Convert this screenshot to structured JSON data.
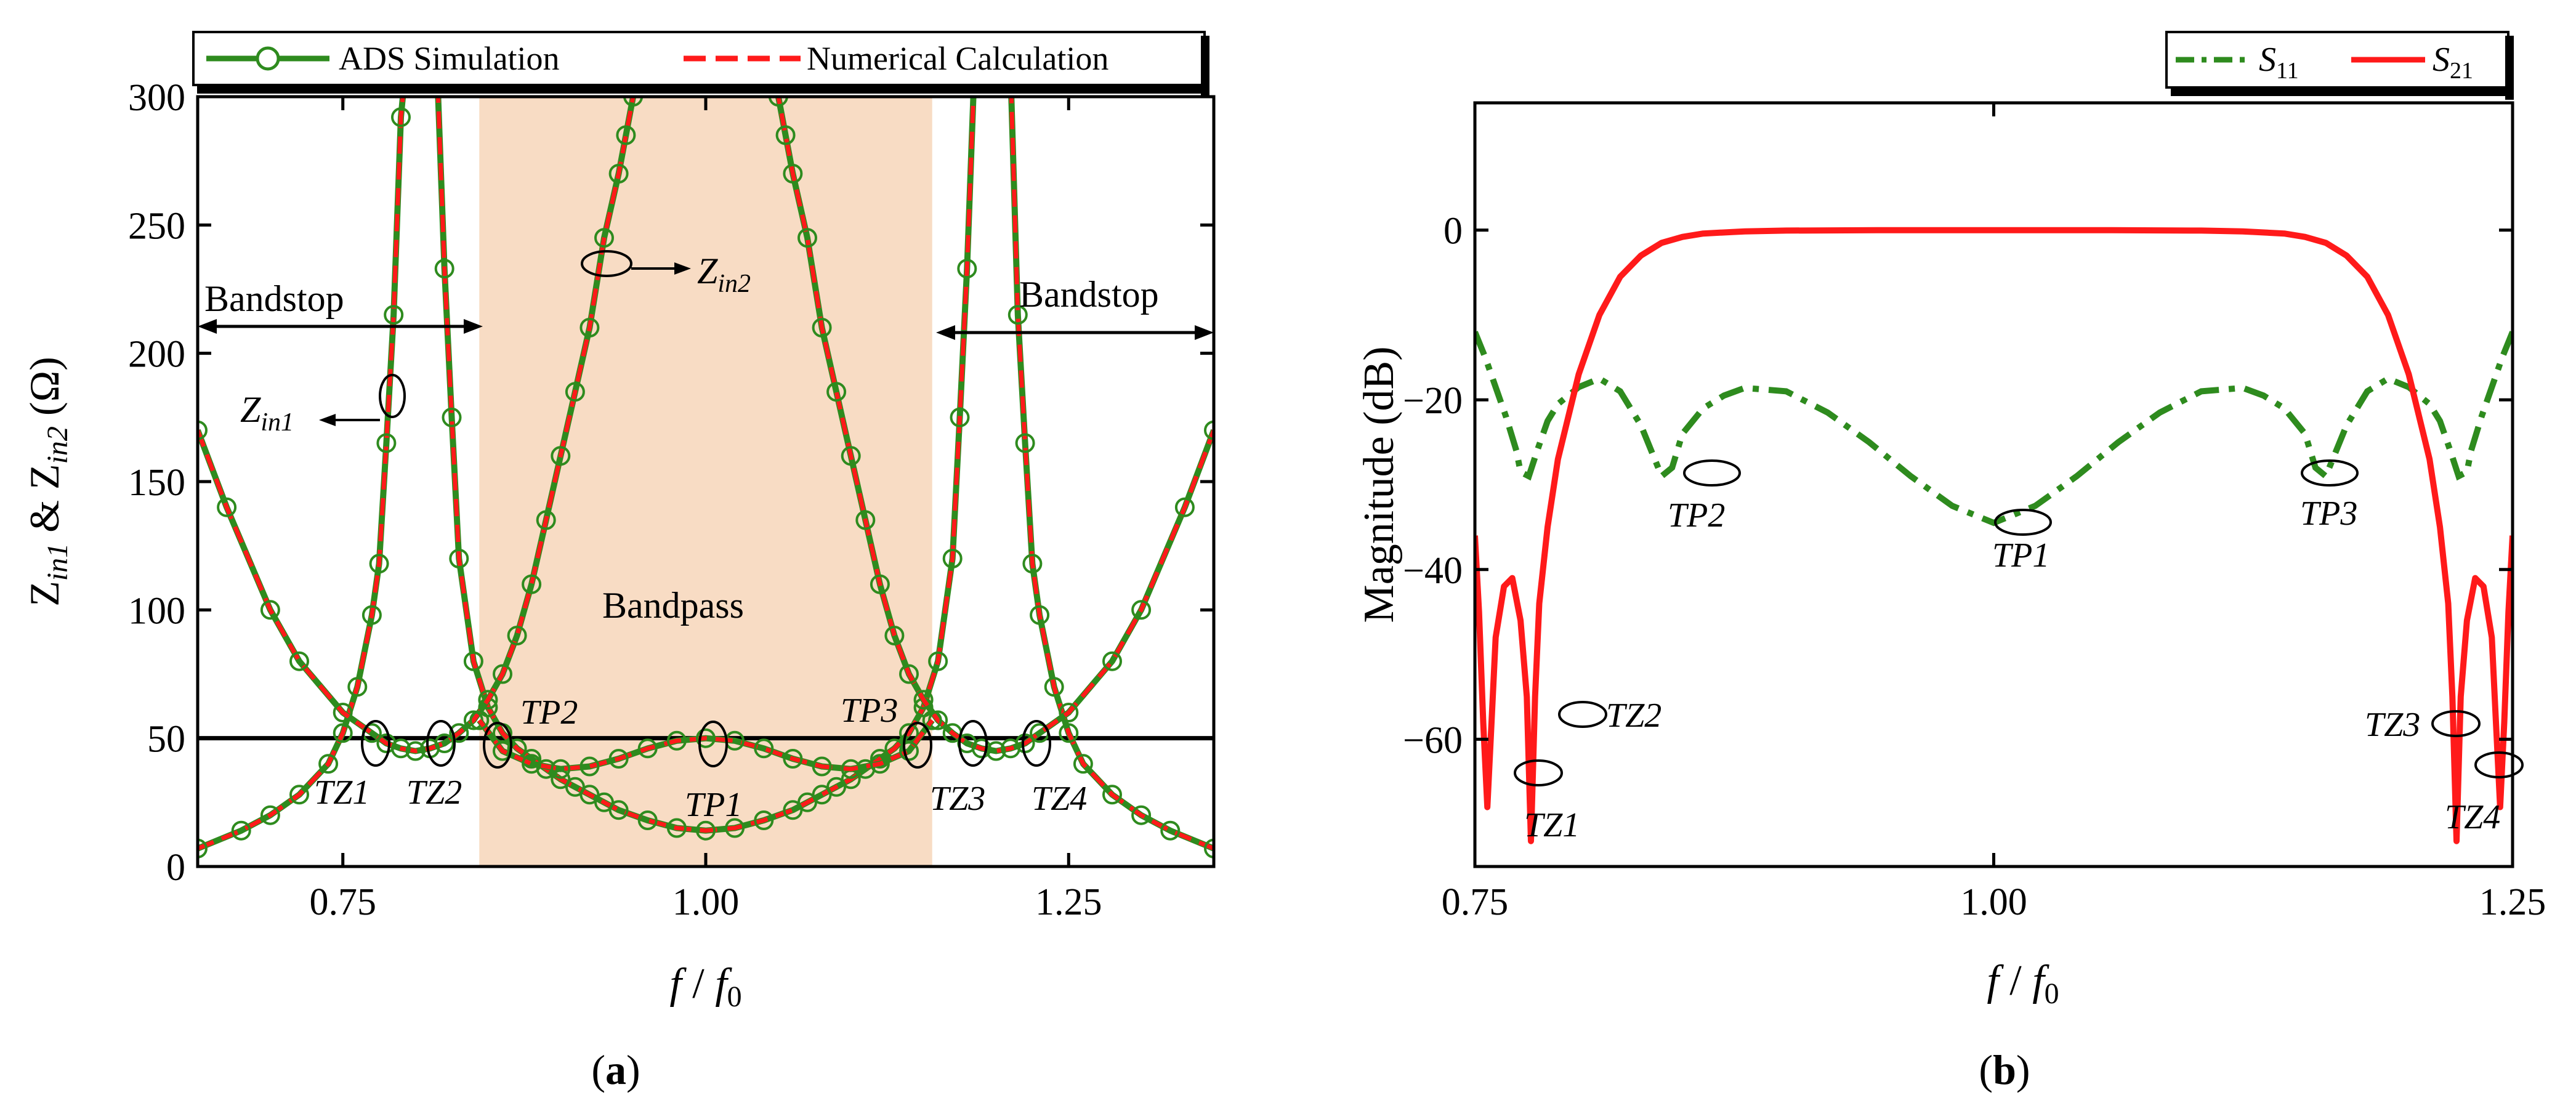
{
  "colors": {
    "green": "#2e8b1e",
    "red": "#ff1a1a",
    "band": "#f8dcc4",
    "black": "#000000"
  },
  "chart_data": [
    {
      "type": "line",
      "panel_label": "(a)",
      "xlabel": "f / f0",
      "ylabel": "Zin1 & Zin2 (Ω)",
      "xlim": [
        0.65,
        1.35
      ],
      "ylim": [
        0,
        300
      ],
      "x_ticks": [
        "0.75",
        "1.00",
        "1.25"
      ],
      "y_ticks": [
        "0",
        "50",
        "100",
        "150",
        "200",
        "250",
        "300"
      ],
      "legend": {
        "placement": "top",
        "entries": [
          "ADS Simulation",
          "Numerical Calculation"
        ]
      },
      "shaded_band": {
        "x": [
          0.844,
          1.156
        ],
        "label": "Bandpass"
      },
      "reference_line": {
        "y": 50
      },
      "series": [
        {
          "name": "Zin1",
          "x": [
            0.65,
            0.68,
            0.7,
            0.72,
            0.74,
            0.75,
            0.76,
            0.77,
            0.775,
            0.78,
            0.785,
            0.79,
            0.793,
            0.797,
            0.8,
            0.805,
            0.81,
            0.815,
            0.82,
            0.825,
            0.83,
            0.84,
            0.85,
            0.86,
            0.87,
            0.88,
            0.89,
            0.9,
            0.91,
            0.92,
            0.93,
            0.94,
            0.96,
            0.98,
            1.0,
            1.02,
            1.04,
            1.06,
            1.07,
            1.08,
            1.09,
            1.1,
            1.11,
            1.12,
            1.13,
            1.14,
            1.15,
            1.16,
            1.17,
            1.175,
            1.18,
            1.185,
            1.19,
            1.195,
            1.2,
            1.203,
            1.207,
            1.21,
            1.215,
            1.22,
            1.225,
            1.23,
            1.24,
            1.25,
            1.26,
            1.28,
            1.3,
            1.32,
            1.35
          ],
          "y": [
            7,
            14,
            20,
            28,
            40,
            52,
            70,
            98,
            118,
            165,
            215,
            292,
            310,
            310,
            310,
            310,
            310,
            310,
            233,
            175,
            120,
            80,
            62,
            52,
            46,
            42,
            38,
            34,
            31,
            28,
            25,
            22,
            18,
            15,
            14,
            15,
            18,
            22,
            25,
            28,
            31,
            34,
            38,
            42,
            46,
            52,
            62,
            80,
            120,
            175,
            233,
            310,
            310,
            310,
            310,
            310,
            310,
            310,
            215,
            165,
            118,
            98,
            70,
            52,
            40,
            28,
            20,
            14,
            7
          ]
        },
        {
          "name": "Zin2",
          "x": [
            0.65,
            0.67,
            0.7,
            0.72,
            0.75,
            0.77,
            0.78,
            0.79,
            0.8,
            0.81,
            0.82,
            0.83,
            0.84,
            0.85,
            0.86,
            0.87,
            0.88,
            0.89,
            0.9,
            0.91,
            0.92,
            0.93,
            0.94,
            0.945,
            0.95,
            0.955,
            0.96,
            1.0,
            1.04,
            1.045,
            1.05,
            1.055,
            1.06,
            1.07,
            1.08,
            1.09,
            1.1,
            1.11,
            1.12,
            1.13,
            1.14,
            1.15,
            1.16,
            1.17,
            1.18,
            1.19,
            1.2,
            1.21,
            1.22,
            1.23,
            1.25,
            1.28,
            1.3,
            1.33,
            1.35
          ],
          "y": [
            170,
            140,
            100,
            80,
            60,
            52,
            48,
            46,
            45,
            46,
            48,
            52,
            57,
            65,
            75,
            90,
            110,
            135,
            160,
            185,
            210,
            245,
            270,
            285,
            300,
            310,
            310,
            310,
            310,
            310,
            300,
            285,
            270,
            245,
            210,
            185,
            160,
            135,
            110,
            90,
            75,
            65,
            57,
            52,
            48,
            46,
            45,
            46,
            48,
            52,
            60,
            80,
            100,
            140,
            170
          ]
        },
        {
          "name": "Bandpass Zin",
          "x": [
            0.844,
            0.86,
            0.88,
            0.9,
            0.92,
            0.94,
            0.96,
            0.98,
            1.0,
            1.02,
            1.04,
            1.06,
            1.08,
            1.1,
            1.12,
            1.14,
            1.156
          ],
          "y": [
            57,
            45,
            40,
            38,
            39,
            42,
            46,
            49,
            50,
            49,
            46,
            42,
            39,
            38,
            40,
            45,
            57
          ]
        }
      ],
      "annotations": [
        "Zin1",
        "Zin2",
        "Bandstop",
        "Bandstop",
        "TP2",
        "TP3",
        "TZ1",
        "TZ2",
        "TP1",
        "TZ3",
        "TZ4"
      ]
    },
    {
      "type": "line",
      "panel_label": "(b)",
      "xlabel": "f / f0",
      "ylabel": "Magnitude (dB)",
      "xlim": [
        0.75,
        1.25
      ],
      "ylim": [
        -75,
        15
      ],
      "x_ticks": [
        "0.75",
        "1.00",
        "1.25"
      ],
      "y_ticks": [
        "0",
        "−20",
        "−40",
        "−60"
      ],
      "legend": {
        "placement": "top-right",
        "entries": [
          "S11",
          "S21"
        ]
      },
      "series": [
        {
          "name": "S11",
          "x": [
            0.75,
            0.755,
            0.76,
            0.765,
            0.77,
            0.772,
            0.776,
            0.78,
            0.785,
            0.79,
            0.8,
            0.81,
            0.82,
            0.83,
            0.835,
            0.84,
            0.845,
            0.85,
            0.86,
            0.87,
            0.88,
            0.9,
            0.92,
            0.94,
            0.96,
            0.98,
            1.0,
            1.02,
            1.04,
            1.06,
            1.08,
            1.1,
            1.12,
            1.13,
            1.14,
            1.15,
            1.155,
            1.16,
            1.165,
            1.17,
            1.18,
            1.19,
            1.2,
            1.21,
            1.215,
            1.22,
            1.224,
            1.228,
            1.23,
            1.235,
            1.24,
            1.245,
            1.25
          ],
          "y": [
            -12,
            -15,
            -18.5,
            -22,
            -26,
            -28.5,
            -29,
            -26,
            -22.5,
            -20.5,
            -18.5,
            -17.5,
            -19,
            -23,
            -26,
            -29,
            -28,
            -24,
            -21,
            -19.5,
            -18.6,
            -19,
            -21.5,
            -25,
            -29,
            -32.5,
            -34.5,
            -32.5,
            -29,
            -25,
            -21.5,
            -19,
            -18.6,
            -19.5,
            -21,
            -24,
            -28,
            -29,
            -26,
            -23,
            -19,
            -17.5,
            -18.5,
            -20.5,
            -22.5,
            -26,
            -29,
            -28.5,
            -26,
            -22,
            -18.5,
            -15,
            -12
          ]
        },
        {
          "name": "S21",
          "x": [
            0.75,
            0.752,
            0.754,
            0.756,
            0.758,
            0.76,
            0.764,
            0.768,
            0.772,
            0.775,
            0.777,
            0.779,
            0.781,
            0.785,
            0.79,
            0.8,
            0.81,
            0.82,
            0.83,
            0.84,
            0.85,
            0.86,
            0.88,
            0.9,
            0.95,
            1.0,
            1.05,
            1.1,
            1.12,
            1.14,
            1.15,
            1.16,
            1.17,
            1.18,
            1.19,
            1.2,
            1.21,
            1.215,
            1.219,
            1.221,
            1.223,
            1.225,
            1.228,
            1.232,
            1.236,
            1.24,
            1.242,
            1.244,
            1.246,
            1.248,
            1.25
          ],
          "y": [
            -36,
            -45,
            -58,
            -68,
            -58,
            -48,
            -42,
            -41,
            -46,
            -55,
            -72,
            -55,
            -44,
            -35,
            -27,
            -17,
            -10,
            -5.5,
            -3,
            -1.5,
            -0.8,
            -0.4,
            -0.15,
            -0.05,
            0,
            0,
            0,
            -0.05,
            -0.15,
            -0.4,
            -0.8,
            -1.5,
            -3,
            -5.5,
            -10,
            -17,
            -27,
            -35,
            -44,
            -55,
            -72,
            -55,
            -46,
            -41,
            -42,
            -48,
            -58,
            -68,
            -58,
            -45,
            -36
          ]
        }
      ],
      "annotations": [
        "TP2",
        "TP1",
        "TP3",
        "TZ2",
        "TZ1",
        "TZ3",
        "TZ4"
      ]
    }
  ]
}
